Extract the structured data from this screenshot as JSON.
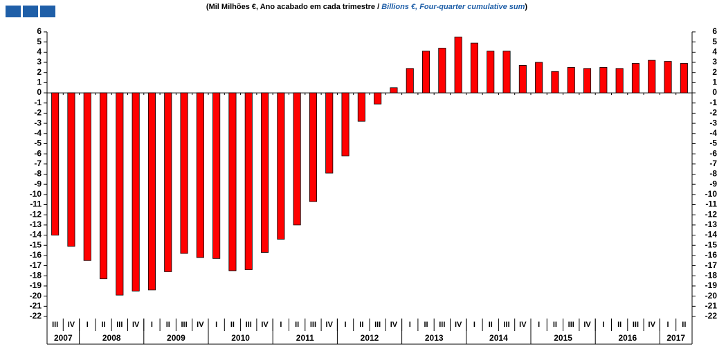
{
  "chart_data": {
    "type": "bar",
    "title_parts": [
      "(Mil Milhões €, Ano acabado em cada trimestre / ",
      "Billions  €, Four-quarter cumulative sum",
      ")"
    ],
    "categories": [
      "III",
      "IV",
      "I",
      "II",
      "III",
      "IV",
      "I",
      "II",
      "III",
      "IV",
      "I",
      "II",
      "III",
      "IV",
      "I",
      "II",
      "III",
      "IV",
      "I",
      "II",
      "III",
      "IV",
      "I",
      "II",
      "III",
      "IV",
      "I",
      "II",
      "III",
      "IV",
      "I",
      "II",
      "III",
      "IV",
      "I",
      "II",
      "III",
      "IV",
      "I",
      "II"
    ],
    "years": [
      "2007",
      "2008",
      "2009",
      "2010",
      "2011",
      "2012",
      "2013",
      "2014",
      "2015",
      "2016",
      "2017"
    ],
    "values": [
      -14.0,
      -15.1,
      -16.5,
      -18.3,
      -19.9,
      -19.5,
      -19.4,
      -17.6,
      -15.8,
      -16.2,
      -16.3,
      -17.5,
      -17.4,
      -15.7,
      -14.4,
      -13.0,
      -10.7,
      -7.9,
      -6.2,
      -2.8,
      -1.1,
      0.5,
      2.4,
      4.1,
      4.4,
      5.5,
      4.9,
      4.1,
      4.1,
      2.7,
      3.0,
      2.1,
      2.5,
      2.4,
      2.5,
      2.4,
      2.9,
      3.2,
      3.1,
      2.9
    ],
    "color": "#ff0000",
    "ylim": [
      -22,
      6
    ],
    "yticks": [
      -22,
      -21,
      -20,
      -19,
      -18,
      -17,
      -16,
      -15,
      -14,
      -13,
      -12,
      -11,
      -10,
      -9,
      -8,
      -7,
      -6,
      -5,
      -4,
      -3,
      -2,
      -1,
      0,
      1,
      2,
      3,
      4,
      5,
      6
    ],
    "y2lim": [
      -22,
      6
    ],
    "y2ticks": [
      -22,
      -21,
      -20,
      -19,
      -18,
      -17,
      -16,
      -15,
      -14,
      -13,
      -12,
      -11,
      -10,
      -9,
      -8,
      -7,
      -6,
      -5,
      -4,
      -3,
      -2,
      -1,
      0,
      1,
      2,
      3,
      4,
      5,
      6
    ]
  }
}
